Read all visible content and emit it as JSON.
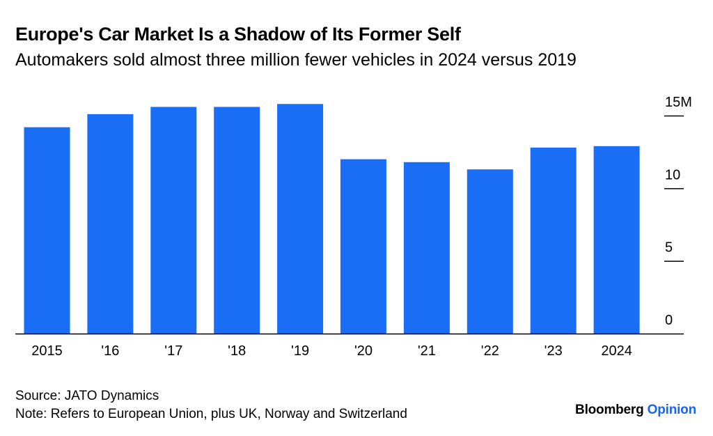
{
  "title": "Europe's Car Market Is a Shadow of Its Former Self",
  "subtitle": "Automakers sold almost three million fewer vehicles in 2024 versus 2019",
  "source": "Source: JATO Dynamics",
  "note": "Note: Refers to European Union, plus UK, Norway and Switzerland",
  "brand": {
    "name": "Bloomberg",
    "section": "Opinion",
    "accent": "#1a64f0"
  },
  "colors": {
    "bar": "#1a6ef5",
    "axis": "#000000"
  },
  "chart_data": {
    "type": "bar",
    "categories": [
      "2015",
      "'16",
      "'17",
      "'18",
      "'19",
      "'20",
      "'21",
      "'22",
      "'23",
      "2024"
    ],
    "values": [
      14.2,
      15.1,
      15.6,
      15.6,
      15.8,
      12.0,
      11.8,
      11.3,
      12.8,
      12.9
    ],
    "title": "",
    "xlabel": "",
    "ylabel": "",
    "ylim": [
      0,
      15
    ],
    "yticks": [
      0,
      5,
      10,
      15
    ],
    "ytick_labels": [
      "0",
      "5",
      "10",
      "15M"
    ],
    "y_axis_position": "right",
    "grid": false
  }
}
